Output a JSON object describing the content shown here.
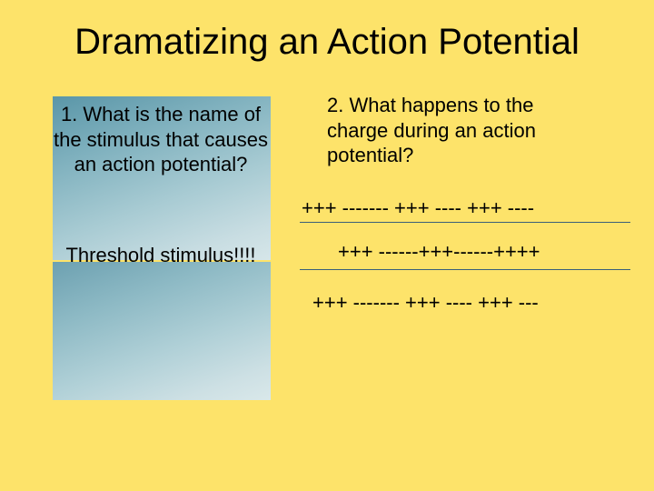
{
  "background_color": "#fde36a",
  "title": "Dramatizing an Action Potential",
  "q1": "1.  What is the name of the stimulus that causes an action potential?",
  "answer": "Threshold stimulus!!!!",
  "q2": "2.  What happens to the charge during an action potential?",
  "charge_lines": {
    "line1": "+++ ------- +++ ---- +++ ----",
    "line2": "+++ ------+++------++++",
    "line3": "+++ ------- +++ ---- +++ ---"
  },
  "colors": {
    "text": "#000000",
    "rule": "#3a5f7a",
    "box_gradient_start": "#5a96a8",
    "box_gradient_end": "#d6e6e9"
  }
}
